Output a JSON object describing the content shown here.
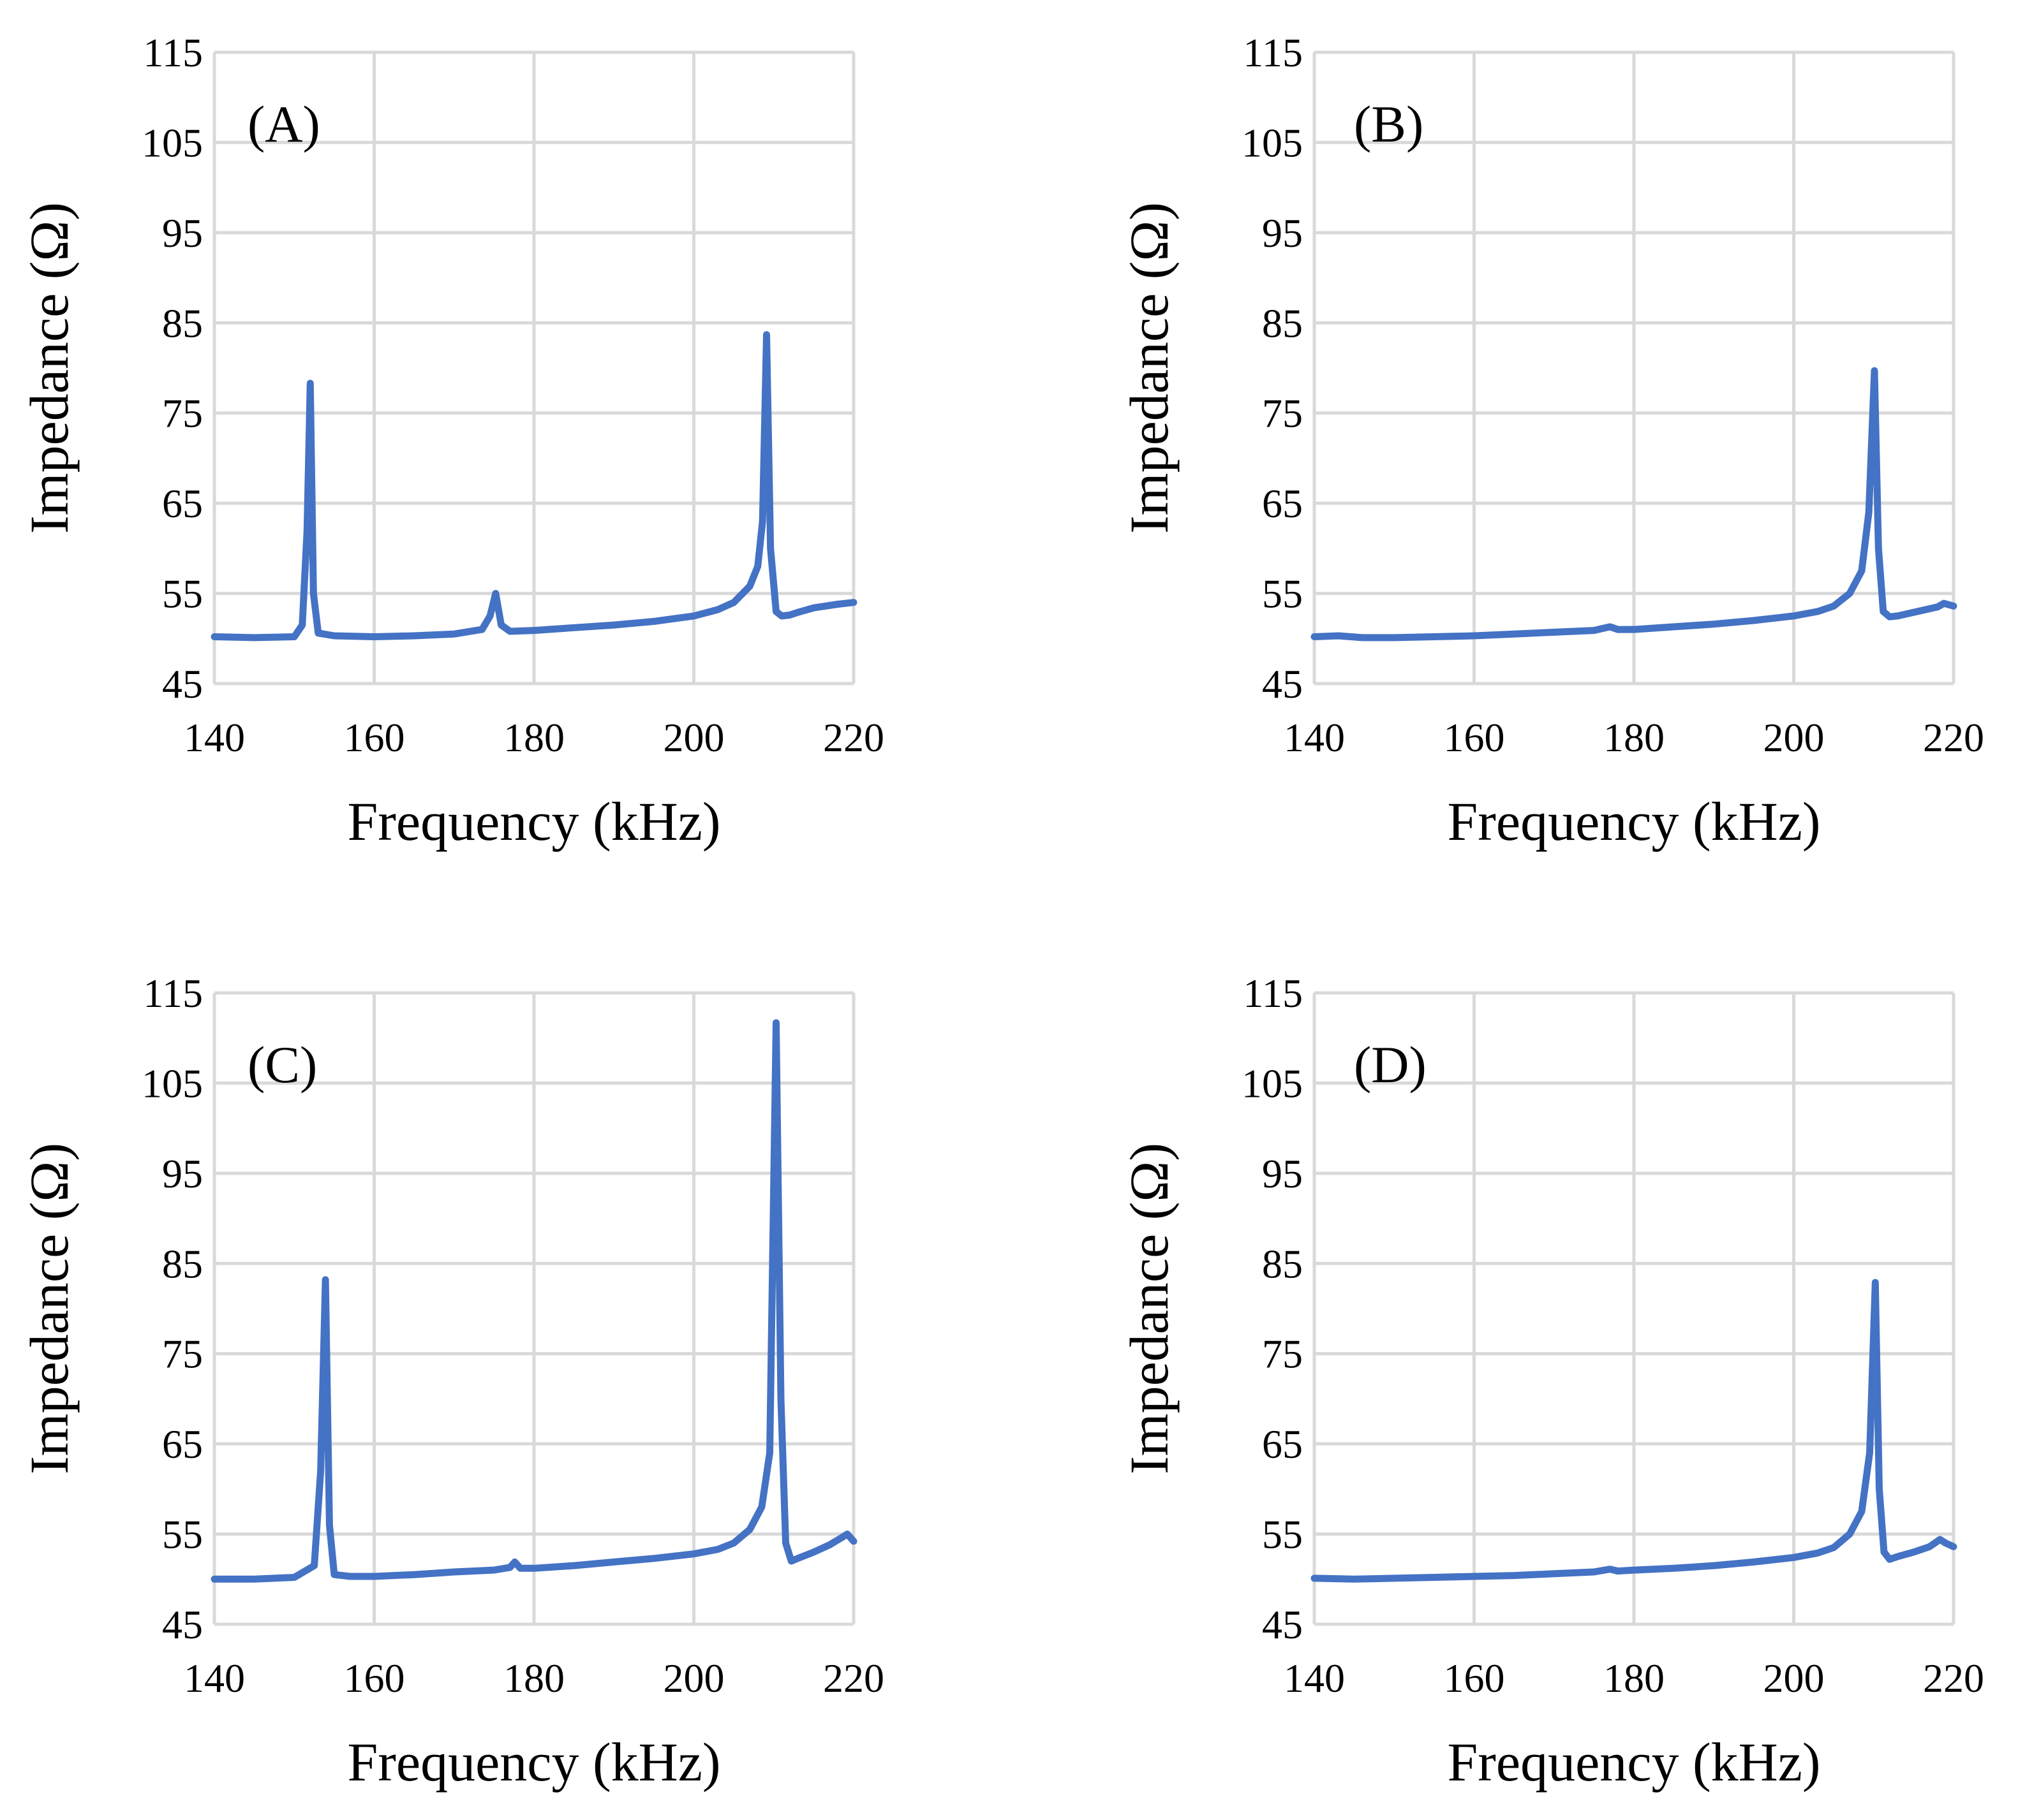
{
  "colors": {
    "series": "#4472C4",
    "grid": "#D9D9D9",
    "text": "#000000",
    "background": "#FFFFFF"
  },
  "chart_data": [
    {
      "type": "line",
      "panel": "(A)",
      "title": "",
      "xlabel": "Frequency (kHz)",
      "ylabel": "Impedance (Ω)",
      "xlim": [
        140,
        220
      ],
      "ylim": [
        45,
        115
      ],
      "xticks": [
        140,
        160,
        180,
        200,
        220
      ],
      "yticks": [
        45,
        55,
        65,
        75,
        85,
        95,
        105,
        115
      ],
      "grid": true,
      "series": [
        {
          "name": "Impedance",
          "x": [
            140,
            145,
            150,
            151,
            151.6,
            152.0,
            152.4,
            153,
            155,
            160,
            165,
            170,
            173.5,
            174.5,
            175.2,
            175.9,
            177,
            180,
            185,
            190,
            195,
            200,
            203,
            205,
            207,
            208,
            208.6,
            209.1,
            209.6,
            210.3,
            211,
            212,
            213,
            215,
            218,
            220
          ],
          "y": [
            50.2,
            50.1,
            50.2,
            51.5,
            62,
            78.3,
            55,
            50.6,
            50.3,
            50.2,
            50.3,
            50.5,
            51.0,
            52.5,
            55,
            51.5,
            50.8,
            50.9,
            51.2,
            51.5,
            51.9,
            52.5,
            53.2,
            54,
            55.8,
            58,
            63,
            83.7,
            60,
            53,
            52.5,
            52.6,
            52.9,
            53.4,
            53.8,
            54
          ]
        }
      ]
    },
    {
      "type": "line",
      "panel": "(B)",
      "title": "",
      "xlabel": "Frequency (kHz)",
      "ylabel": "Impedance (Ω)",
      "xlim": [
        140,
        220
      ],
      "ylim": [
        45,
        115
      ],
      "xticks": [
        140,
        160,
        180,
        200,
        220
      ],
      "yticks": [
        45,
        55,
        65,
        75,
        85,
        95,
        105,
        115
      ],
      "grid": true,
      "series": [
        {
          "name": "Impedance",
          "x": [
            140,
            143,
            146,
            150,
            155,
            160,
            165,
            170,
            175,
            177,
            178,
            180,
            185,
            190,
            195,
            200,
            203,
            205,
            207,
            208.5,
            209.4,
            210.1,
            210.6,
            211.2,
            212,
            213,
            215,
            218,
            218.8,
            220
          ],
          "y": [
            50.2,
            50.3,
            50.1,
            50.1,
            50.2,
            50.3,
            50.5,
            50.7,
            50.9,
            51.3,
            51.0,
            51.0,
            51.3,
            51.6,
            52.0,
            52.5,
            53.0,
            53.6,
            55,
            57.5,
            64,
            79.7,
            60,
            53,
            52.4,
            52.5,
            52.9,
            53.5,
            53.9,
            53.6
          ]
        }
      ]
    },
    {
      "type": "line",
      "panel": "(C)",
      "title": "",
      "xlabel": "Frequency (kHz)",
      "ylabel": "Impedance (Ω)",
      "xlim": [
        140,
        220
      ],
      "ylim": [
        45,
        115
      ],
      "xticks": [
        140,
        160,
        180,
        200,
        220
      ],
      "yticks": [
        45,
        55,
        65,
        75,
        85,
        95,
        105,
        115
      ],
      "grid": true,
      "series": [
        {
          "name": "Impedance",
          "x": [
            140,
            145,
            150,
            152.5,
            153.3,
            153.9,
            154.4,
            155,
            157,
            160,
            165,
            170,
            175,
            177,
            177.6,
            178.3,
            180,
            185,
            190,
            195,
            200,
            203,
            205,
            207,
            208.5,
            209.5,
            210.3,
            210.9,
            211.5,
            212.2,
            213,
            215,
            217,
            218.5,
            219.2,
            220
          ],
          "y": [
            50.0,
            50.0,
            50.2,
            51.5,
            62,
            83.2,
            56,
            50.5,
            50.3,
            50.3,
            50.5,
            50.8,
            51.0,
            51.3,
            51.9,
            51.2,
            51.2,
            51.5,
            51.9,
            52.3,
            52.8,
            53.3,
            54,
            55.5,
            58,
            64,
            111.7,
            70,
            54,
            52.0,
            52.3,
            53.0,
            53.8,
            54.6,
            55.0,
            54.2
          ]
        }
      ]
    },
    {
      "type": "line",
      "panel": "(D)",
      "title": "",
      "xlabel": "Frequency (kHz)",
      "ylabel": "Impedance (Ω)",
      "xlim": [
        140,
        220
      ],
      "ylim": [
        45,
        115
      ],
      "xticks": [
        140,
        160,
        180,
        200,
        220
      ],
      "yticks": [
        45,
        55,
        65,
        75,
        85,
        95,
        105,
        115
      ],
      "grid": true,
      "series": [
        {
          "name": "Impedance",
          "x": [
            140,
            145,
            150,
            155,
            160,
            165,
            170,
            175,
            177,
            178,
            180,
            185,
            190,
            195,
            200,
            203,
            205,
            207,
            208.5,
            209.5,
            210.2,
            210.7,
            211.3,
            212,
            213,
            215,
            217,
            218.3,
            219,
            220
          ],
          "y": [
            50.1,
            50.0,
            50.1,
            50.2,
            50.3,
            50.4,
            50.6,
            50.8,
            51.1,
            50.9,
            51.0,
            51.2,
            51.5,
            51.9,
            52.4,
            52.9,
            53.5,
            55,
            57.5,
            64,
            82.9,
            60,
            53,
            52.2,
            52.5,
            53.0,
            53.6,
            54.4,
            54.0,
            53.6
          ]
        }
      ]
    }
  ]
}
